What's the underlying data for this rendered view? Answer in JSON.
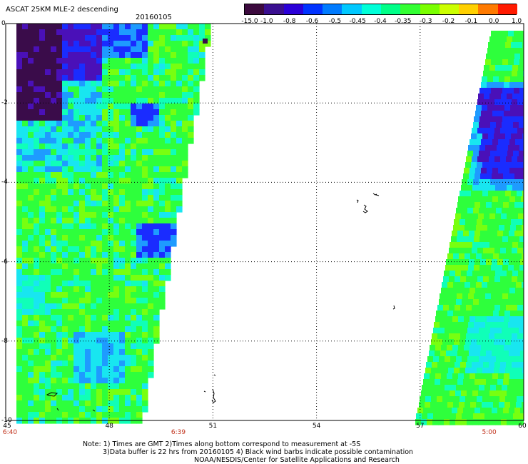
{
  "title": {
    "left": "ASCAT 25KM MLE-2 descending",
    "date": "20160105"
  },
  "colorbar": {
    "labels": [
      "-15.0",
      "-1.0",
      "-0.8",
      "-0.6",
      "-0.5",
      "-0.45",
      "-0.4",
      "-0.35",
      "-0.3",
      "-0.2",
      "-0.1",
      "0.0",
      "1.0"
    ],
    "colors": [
      "#3c0a3e",
      "#3a0f90",
      "#2a00d8",
      "#0033ff",
      "#007bff",
      "#00c8ff",
      "#00ffd8",
      "#00ff88",
      "#33ff33",
      "#7aff00",
      "#ccff00",
      "#ffd000",
      "#ff7a00",
      "#ff1a00"
    ]
  },
  "axes": {
    "x_ticks": [
      "45",
      "48",
      "51",
      "54",
      "57",
      "60"
    ],
    "y_ticks": [
      "0",
      "-2",
      "-4",
      "-6",
      "-8",
      "-10"
    ]
  },
  "time_labels": [
    {
      "text": "6:40",
      "at": "45"
    },
    {
      "text": "6:39",
      "at": "50"
    },
    {
      "text": "5:00",
      "at": "59"
    }
  ],
  "notes": [
    "Note: 1) Times are GMT 2)Times along bottom correspond to measurement at -5S",
    "3)Data buffer is 22 hrs from 20160105 4) Black wind barbs indicate possible contamination",
    "NOAA/NESDIS/Center for Satellite Applications and Research"
  ],
  "palette": {
    "dark_purple": "#3a0c4a",
    "purple": "#4a10b8",
    "blue": "#1a2cff",
    "light_blue": "#1e9bff",
    "cyan": "#18e6f0",
    "aqua": "#10ffb8",
    "green": "#2eff3c",
    "lime": "#78ff10"
  }
}
